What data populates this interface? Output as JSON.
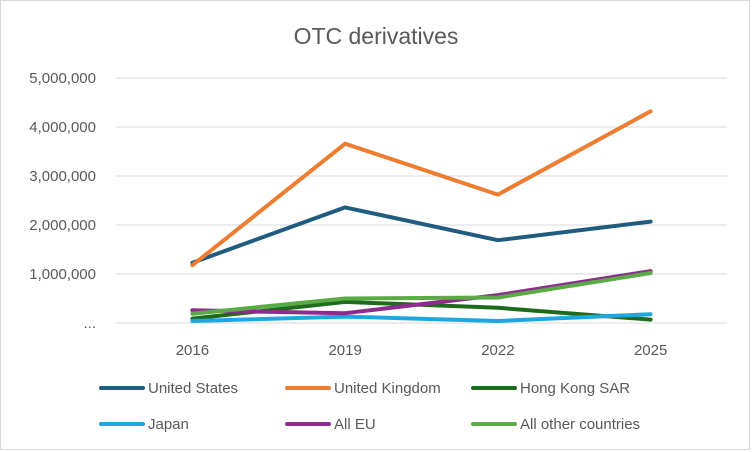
{
  "chart_data": {
    "type": "line",
    "title": "OTC derivatives",
    "categories": [
      "2016",
      "2019",
      "2022",
      "2025"
    ],
    "ylim": [
      0,
      5000000
    ],
    "yticks": [
      0,
      1000000,
      2000000,
      3000000,
      4000000,
      5000000
    ],
    "ytick_labels": [
      "...",
      "1,000,000",
      "2,000,000",
      "3,000,000",
      "4,000,000",
      "5,000,000"
    ],
    "grid": true,
    "legend_position": "bottom",
    "series": [
      {
        "name": "United States",
        "color": "#1f5c7f",
        "values": [
          1230000,
          2360000,
          1690000,
          2070000
        ]
      },
      {
        "name": "United Kingdom",
        "color": "#ed7d31",
        "values": [
          1180000,
          3660000,
          2620000,
          4320000
        ]
      },
      {
        "name": "Hong Kong SAR",
        "color": "#1e6b1e",
        "values": [
          90000,
          430000,
          310000,
          70000
        ]
      },
      {
        "name": "Japan",
        "color": "#1ea7e1",
        "values": [
          40000,
          130000,
          40000,
          180000
        ]
      },
      {
        "name": "All EU",
        "color": "#8e2c8e",
        "values": [
          260000,
          200000,
          570000,
          1060000
        ]
      },
      {
        "name": "All other countries",
        "color": "#5aab46",
        "values": [
          190000,
          500000,
          520000,
          1020000
        ]
      }
    ]
  }
}
